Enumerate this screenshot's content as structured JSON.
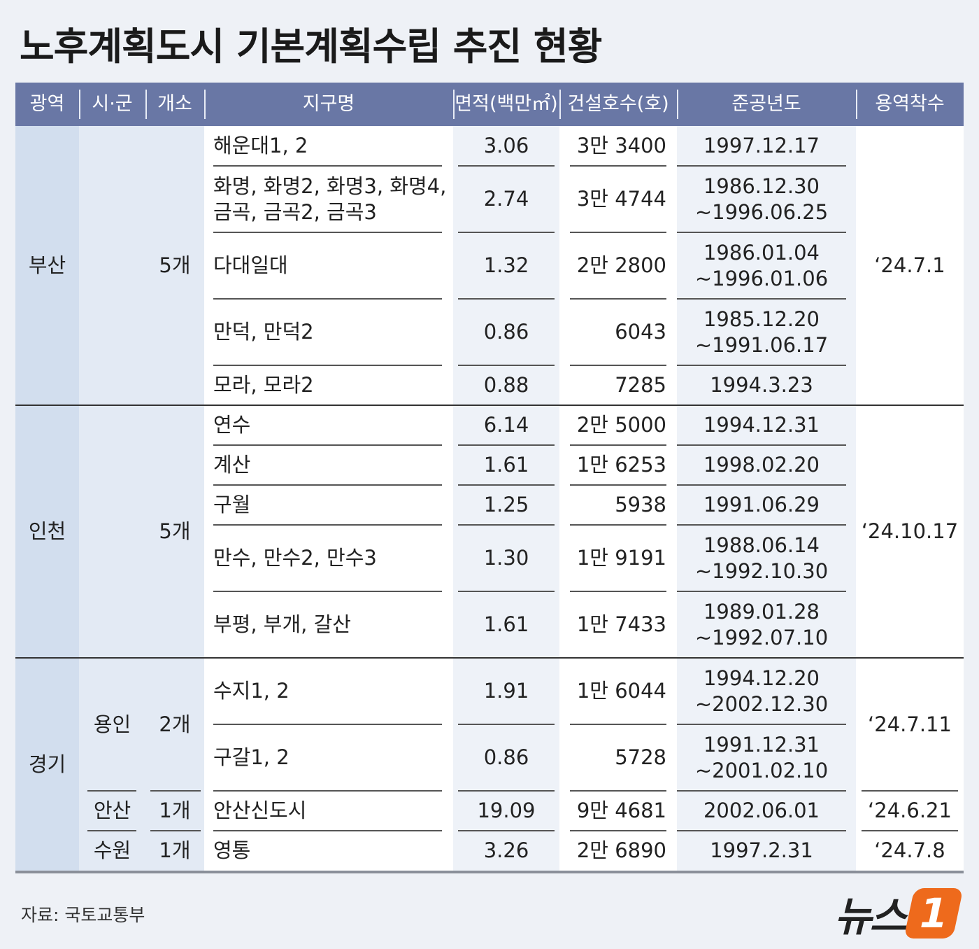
{
  "title": "노후계획도시 기본계획수립 추진 현황",
  "table": {
    "header": [
      "광역",
      "시·군",
      "개소",
      "지구명",
      "면적(백만㎡)",
      "건설호수(호)",
      "준공년도",
      "용역착수"
    ],
    "groups": [
      {
        "region": "부산",
        "cities": [
          {
            "count": "5개",
            "start": "‘24.7.1",
            "rows": [
              {
                "name": "해운대1, 2",
                "area": "3.06",
                "units": "3만 3400",
                "completed": "1997.12.17"
              },
              {
                "name": "화명, 화명2, 화명3, 화명4,\n금곡, 금곡2, 금곡3",
                "area": "2.74",
                "units": "3만 4744",
                "completed": "1986.12.30\n~1996.06.25"
              },
              {
                "name": "다대일대",
                "area": "1.32",
                "units": "2만 2800",
                "completed": "1986.01.04\n~1996.01.06"
              },
              {
                "name": "만덕, 만덕2",
                "area": "0.86",
                "units": "6043",
                "completed": "1985.12.20\n~1991.06.17"
              },
              {
                "name": "모라, 모라2",
                "area": "0.88",
                "units": "7285",
                "completed": "1994.3.23"
              }
            ]
          }
        ]
      },
      {
        "region": "인천",
        "cities": [
          {
            "count": "5개",
            "start": "‘24.10.17",
            "rows": [
              {
                "name": "연수",
                "area": "6.14",
                "units": "2만 5000",
                "completed": "1994.12.31"
              },
              {
                "name": "계산",
                "area": "1.61",
                "units": "1만 6253",
                "completed": "1998.02.20"
              },
              {
                "name": "구월",
                "area": "1.25",
                "units": "5938",
                "completed": "1991.06.29"
              },
              {
                "name": "만수, 만수2, 만수3",
                "area": "1.30",
                "units": "1만 9191",
                "completed": "1988.06.14\n~1992.10.30"
              },
              {
                "name": "부평, 부개, 갈산",
                "area": "1.61",
                "units": "1만 7433",
                "completed": "1989.01.28\n~1992.07.10"
              }
            ]
          }
        ]
      },
      {
        "region": "경기",
        "cities": [
          {
            "city": "용인",
            "count": "2개",
            "start": "‘24.7.11",
            "rows": [
              {
                "name": "수지1, 2",
                "area": "1.91",
                "units": "1만 6044",
                "completed": "1994.12.20\n~2002.12.30"
              },
              {
                "name": "구갈1, 2",
                "area": "0.86",
                "units": "5728",
                "completed": "1991.12.31\n~2001.02.10"
              }
            ]
          },
          {
            "city": "안산",
            "count": "1개",
            "start": "‘24.6.21",
            "rows": [
              {
                "name": "안산신도시",
                "area": "19.09",
                "units": "9만 4681",
                "completed": "2002.06.01"
              }
            ]
          },
          {
            "city": "수원",
            "count": "1개",
            "start": "‘24.7.8",
            "rows": [
              {
                "name": "영통",
                "area": "3.26",
                "units": "2만 6890",
                "completed": "1997.2.31"
              }
            ]
          }
        ]
      }
    ]
  },
  "source": "자료: 국토교통부",
  "logo": {
    "text": "뉴스",
    "mark": "1"
  }
}
